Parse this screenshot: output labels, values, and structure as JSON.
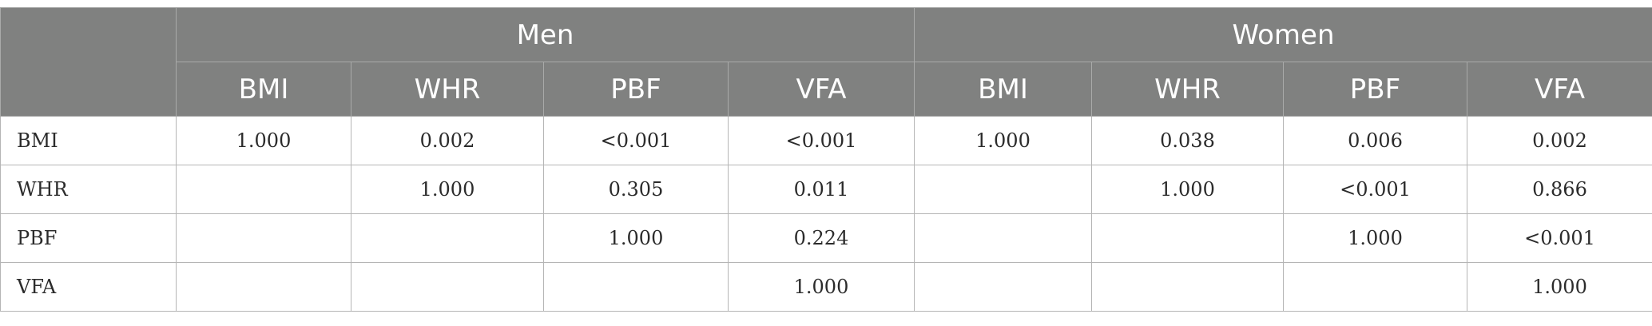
{
  "table": {
    "corner_label": "",
    "groups": [
      "Men",
      "Women"
    ],
    "subheaders": [
      "BMI",
      "WHR",
      "PBF",
      "VFA",
      "BMI",
      "WHR",
      "PBF",
      "VFA"
    ],
    "rows": [
      {
        "label": "BMI",
        "cells": [
          "1.000",
          "0.002",
          "<0.001",
          "<0.001",
          "1.000",
          "0.038",
          "0.006",
          "0.002"
        ]
      },
      {
        "label": "WHR",
        "cells": [
          "",
          "1.000",
          "0.305",
          "0.011",
          "",
          "1.000",
          "<0.001",
          "0.866"
        ]
      },
      {
        "label": "PBF",
        "cells": [
          "",
          "",
          "1.000",
          "0.224",
          "",
          "",
          "1.000",
          "<0.001"
        ]
      },
      {
        "label": "VFA",
        "cells": [
          "",
          "",
          "",
          "1.000",
          "",
          "",
          "",
          "1.000"
        ]
      }
    ]
  }
}
